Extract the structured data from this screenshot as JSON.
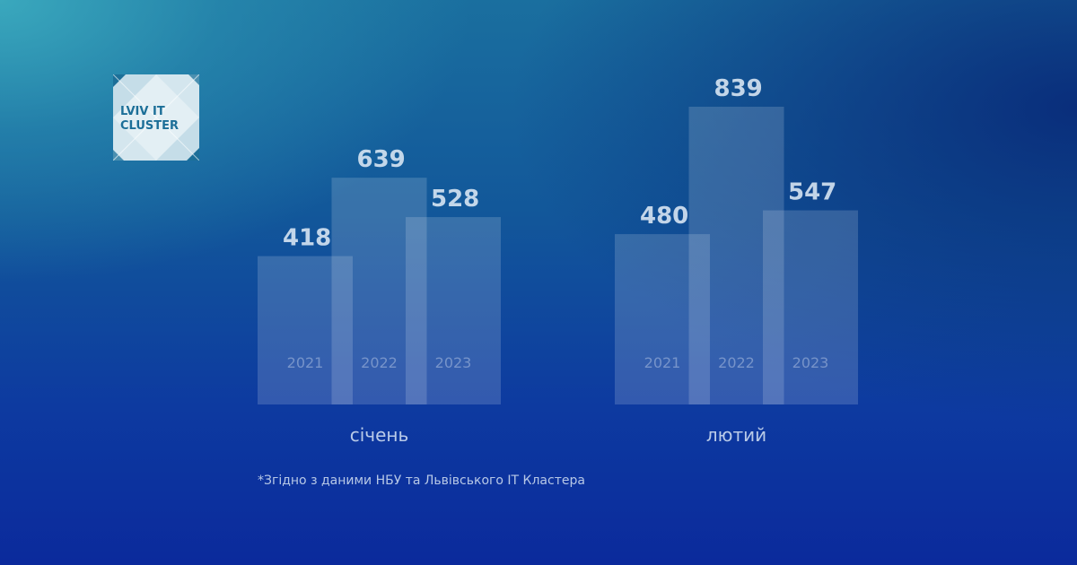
{
  "logo": {
    "line1": "LVIV IT",
    "line2": "CLUSTER"
  },
  "footnote": "*Згідно з даними НБУ та Львівського ІТ Кластера",
  "chart_data": {
    "type": "bar",
    "groups": [
      "січень",
      "лютий"
    ],
    "series": [
      {
        "name": "2021",
        "values": [
          418,
          480
        ]
      },
      {
        "name": "2022",
        "values": [
          639,
          839
        ]
      },
      {
        "name": "2023",
        "values": [
          528,
          547
        ]
      }
    ],
    "ylim": [
      0,
      839
    ]
  },
  "colors": {
    "background_top": "#3aa8bd",
    "background_bottom": "#0b2a9c",
    "logo_accent": "#1c6f98"
  }
}
